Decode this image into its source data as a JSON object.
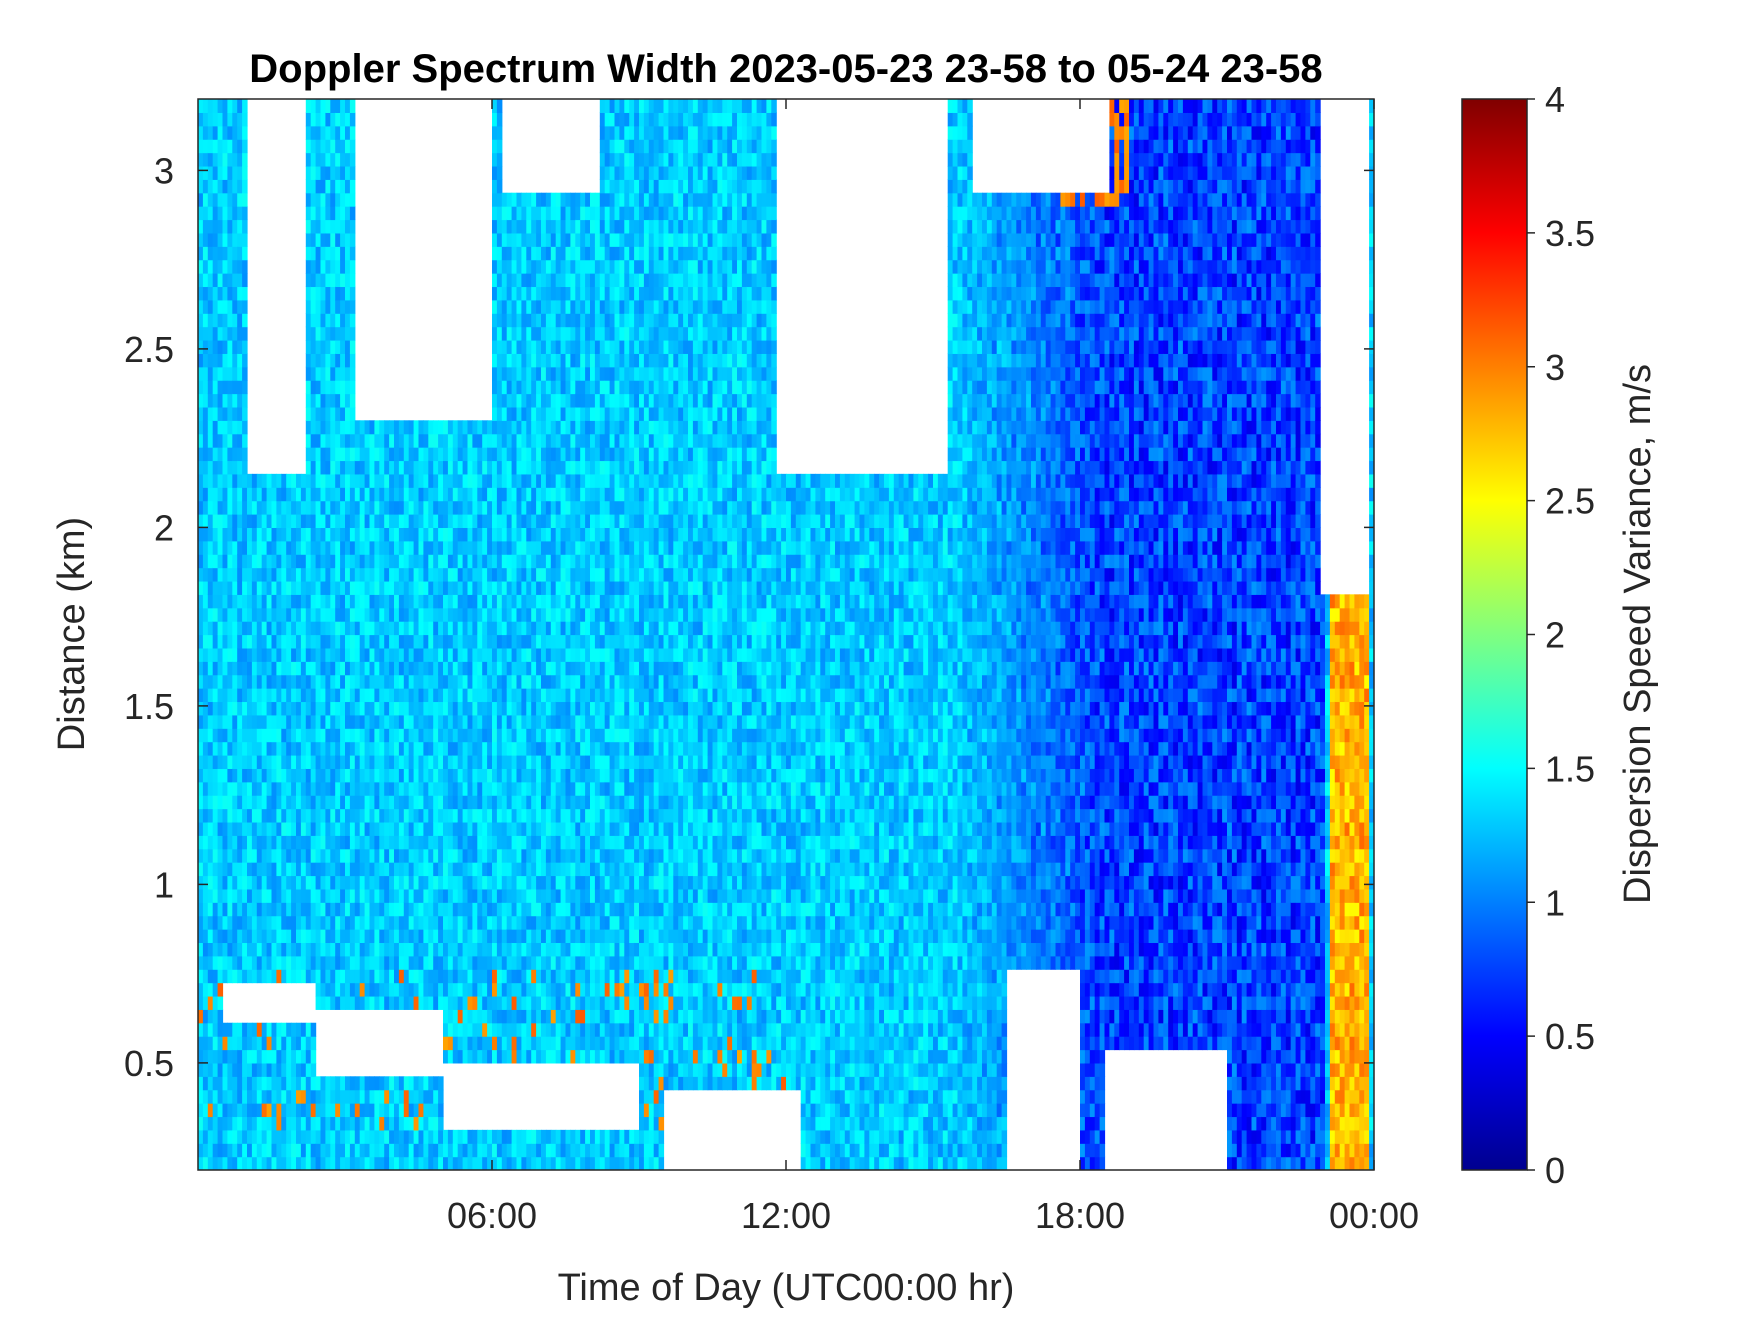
{
  "chart_data": {
    "type": "heatmap",
    "title": "Doppler Spectrum Width 2023-05-23 23-58 to 05-24 23-58",
    "xlabel": "Time of Day (UTC00:00 hr)",
    "ylabel": "Distance (km)",
    "colorbar_label": "Dispersion Speed Variance, m/s",
    "colormap": "jet",
    "no_data_color": "#ffffff",
    "xlim_hours": [
      0,
      24
    ],
    "ylim_km": [
      0.2,
      3.2
    ],
    "clim": [
      0,
      4
    ],
    "x_ticks": [
      {
        "hour": 6,
        "label": "06:00"
      },
      {
        "hour": 12,
        "label": "12:00"
      },
      {
        "hour": 18,
        "label": "18:00"
      },
      {
        "hour": 24,
        "label": "00:00"
      }
    ],
    "y_ticks": [
      {
        "value": 0.5,
        "label": "0.5"
      },
      {
        "value": 1,
        "label": "1"
      },
      {
        "value": 1.5,
        "label": "1.5"
      },
      {
        "value": 2,
        "label": "2"
      },
      {
        "value": 2.5,
        "label": "2.5"
      },
      {
        "value": 3,
        "label": "3"
      }
    ],
    "colorbar_ticks": [
      {
        "value": 0,
        "label": "0"
      },
      {
        "value": 0.5,
        "label": "0.5"
      },
      {
        "value": 1,
        "label": "1"
      },
      {
        "value": 1.5,
        "label": "1.5"
      },
      {
        "value": 2,
        "label": "2"
      },
      {
        "value": 2.5,
        "label": "2.5"
      },
      {
        "value": 3,
        "label": "3"
      },
      {
        "value": 3.5,
        "label": "3.5"
      },
      {
        "value": 4,
        "label": "4"
      }
    ],
    "grid": false,
    "regions": {
      "typical_value_ms": 1.3,
      "no_data_gaps": [
        {
          "hours": [
            1.0,
            2.2
          ],
          "km": [
            2.15,
            3.2
          ]
        },
        {
          "hours": [
            3.2,
            6.0
          ],
          "km": [
            2.3,
            3.2
          ]
        },
        {
          "hours": [
            6.2,
            8.2
          ],
          "km": [
            2.95,
            3.2
          ]
        },
        {
          "hours": [
            11.8,
            15.3
          ],
          "km": [
            2.15,
            3.2
          ]
        },
        {
          "hours": [
            15.8,
            18.6
          ],
          "km": [
            2.95,
            3.2
          ]
        },
        {
          "hours": [
            22.9,
            23.9
          ],
          "km": [
            1.8,
            3.2
          ]
        },
        {
          "hours": [
            0.5,
            2.4
          ],
          "km": [
            0.6,
            0.72
          ]
        },
        {
          "hours": [
            2.4,
            5.0
          ],
          "km": [
            0.46,
            0.65
          ]
        },
        {
          "hours": [
            5.0,
            9.0
          ],
          "km": [
            0.3,
            0.5
          ]
        },
        {
          "hours": [
            9.5,
            12.3
          ],
          "km": [
            0.2,
            0.42
          ]
        },
        {
          "hours": [
            16.5,
            18.0
          ],
          "km": [
            0.2,
            0.75
          ]
        },
        {
          "hours": [
            18.5,
            21.0
          ],
          "km": [
            0.2,
            0.55
          ]
        }
      ],
      "orange_areas_ms": 3.0,
      "dark_blue_afternoon_evening_ms": 0.4,
      "late_evening_band": {
        "hours": [
          23.1,
          23.9
        ],
        "km": [
          0.2,
          1.8
        ],
        "value_ms": 2.8
      }
    }
  }
}
